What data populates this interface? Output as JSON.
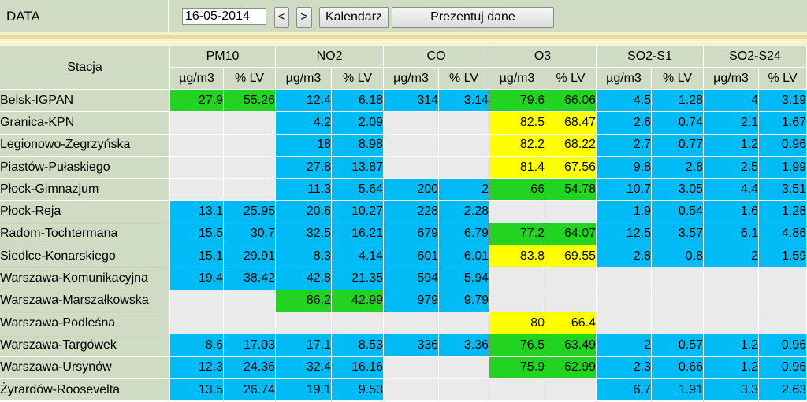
{
  "toolbar": {
    "date_label": "DATA",
    "date_value": "16-05-2014",
    "prev_label": "<",
    "next_label": ">",
    "calendar_label": "Kalendarz",
    "show_label": "Prezentuj dane"
  },
  "colors": {
    "green": "#22d322",
    "blue": "#00bbf6",
    "yellow": "#ffff00",
    "empty": "#eaeaea",
    "header": "#cfdcc3"
  },
  "table": {
    "station_header": "Stacja",
    "pollutants": [
      "PM10",
      "NO2",
      "CO",
      "O3",
      "SO2-S1",
      "SO2-S24"
    ],
    "unit_labels": [
      "µg/m3",
      "% LV"
    ],
    "rows": [
      {
        "station": "Belsk-IGPAN",
        "cells": [
          [
            "27.9",
            "55.26",
            "green"
          ],
          [
            "12.4",
            "6.18",
            "blue"
          ],
          [
            "314",
            "3.14",
            "blue"
          ],
          [
            "79.6",
            "66.06",
            "green"
          ],
          [
            "4.5",
            "1.28",
            "blue"
          ],
          [
            "4",
            "3.19",
            "blue"
          ]
        ]
      },
      {
        "station": "Granica-KPN",
        "cells": [
          [
            "",
            "",
            "gray"
          ],
          [
            "4.2",
            "2.09",
            "blue"
          ],
          [
            "",
            "",
            "gray"
          ],
          [
            "82.5",
            "68.47",
            "yellow"
          ],
          [
            "2.6",
            "0.74",
            "blue"
          ],
          [
            "2.1",
            "1.67",
            "blue"
          ]
        ]
      },
      {
        "station": "Legionowo-Zegrzyńska",
        "cells": [
          [
            "",
            "",
            "gray"
          ],
          [
            "18",
            "8.98",
            "blue"
          ],
          [
            "",
            "",
            "gray"
          ],
          [
            "82.2",
            "68.22",
            "yellow"
          ],
          [
            "2.7",
            "0.77",
            "blue"
          ],
          [
            "1.2",
            "0.96",
            "blue"
          ]
        ]
      },
      {
        "station": "Piastów-Pułaskiego",
        "cells": [
          [
            "",
            "",
            "gray"
          ],
          [
            "27.8",
            "13.87",
            "blue"
          ],
          [
            "",
            "",
            "gray"
          ],
          [
            "81.4",
            "67.56",
            "yellow"
          ],
          [
            "9.8",
            "2.8",
            "blue"
          ],
          [
            "2.5",
            "1.99",
            "blue"
          ]
        ]
      },
      {
        "station": "Płock-Gimnazjum",
        "cells": [
          [
            "",
            "",
            "gray"
          ],
          [
            "11.3",
            "5.64",
            "blue"
          ],
          [
            "200",
            "2",
            "blue"
          ],
          [
            "66",
            "54.78",
            "green"
          ],
          [
            "10.7",
            "3.05",
            "blue"
          ],
          [
            "4.4",
            "3.51",
            "blue"
          ]
        ]
      },
      {
        "station": "Płock-Reja",
        "cells": [
          [
            "13.1",
            "25.95",
            "blue"
          ],
          [
            "20.6",
            "10.27",
            "blue"
          ],
          [
            "228",
            "2.28",
            "blue"
          ],
          [
            "",
            "",
            "gray"
          ],
          [
            "1.9",
            "0.54",
            "blue"
          ],
          [
            "1.6",
            "1.28",
            "blue"
          ]
        ]
      },
      {
        "station": "Radom-Tochtermana",
        "cells": [
          [
            "15.5",
            "30.7",
            "blue"
          ],
          [
            "32.5",
            "16.21",
            "blue"
          ],
          [
            "679",
            "6.79",
            "blue"
          ],
          [
            "77.2",
            "64.07",
            "green"
          ],
          [
            "12.5",
            "3.57",
            "blue"
          ],
          [
            "6.1",
            "4.86",
            "blue"
          ]
        ]
      },
      {
        "station": "Siedlce-Konarskiego",
        "cells": [
          [
            "15.1",
            "29.91",
            "blue"
          ],
          [
            "8.3",
            "4.14",
            "blue"
          ],
          [
            "601",
            "6.01",
            "blue"
          ],
          [
            "83.8",
            "69.55",
            "yellow"
          ],
          [
            "2.8",
            "0.8",
            "blue"
          ],
          [
            "2",
            "1.59",
            "blue"
          ]
        ]
      },
      {
        "station": "Warszawa-Komunikacyjna",
        "cells": [
          [
            "19.4",
            "38.42",
            "blue"
          ],
          [
            "42.8",
            "21.35",
            "blue"
          ],
          [
            "594",
            "5.94",
            "blue"
          ],
          [
            "",
            "",
            "gray"
          ],
          [
            "",
            "",
            "gray"
          ],
          [
            "",
            "",
            "gray"
          ]
        ]
      },
      {
        "station": "Warszawa-Marszałkowska",
        "cells": [
          [
            "",
            "",
            "gray"
          ],
          [
            "86.2",
            "42.99",
            "green"
          ],
          [
            "979",
            "9.79",
            "blue"
          ],
          [
            "",
            "",
            "gray"
          ],
          [
            "",
            "",
            "gray"
          ],
          [
            "",
            "",
            "gray"
          ]
        ]
      },
      {
        "station": "Warszawa-Podleśna",
        "cells": [
          [
            "",
            "",
            "gray"
          ],
          [
            "",
            "",
            "gray"
          ],
          [
            "",
            "",
            "gray"
          ],
          [
            "80",
            "66.4",
            "yellow"
          ],
          [
            "",
            "",
            "gray"
          ],
          [
            "",
            "",
            "gray"
          ]
        ]
      },
      {
        "station": "Warszawa-Targówek",
        "cells": [
          [
            "8.6",
            "17.03",
            "blue"
          ],
          [
            "17.1",
            "8.53",
            "blue"
          ],
          [
            "336",
            "3.36",
            "blue"
          ],
          [
            "76.5",
            "63.49",
            "green"
          ],
          [
            "2",
            "0.57",
            "blue"
          ],
          [
            "1.2",
            "0.96",
            "blue"
          ]
        ]
      },
      {
        "station": "Warszawa-Ursynów",
        "cells": [
          [
            "12.3",
            "24.36",
            "blue"
          ],
          [
            "32.4",
            "16.16",
            "blue"
          ],
          [
            "",
            "",
            "gray"
          ],
          [
            "75.9",
            "62.99",
            "green"
          ],
          [
            "2.3",
            "0.66",
            "blue"
          ],
          [
            "1.2",
            "0.96",
            "blue"
          ]
        ]
      },
      {
        "station": "Żyrardów-Roosevelta",
        "cells": [
          [
            "13.5",
            "26.74",
            "blue"
          ],
          [
            "19.1",
            "9.53",
            "blue"
          ],
          [
            "",
            "",
            "gray"
          ],
          [
            "",
            "",
            "gray"
          ],
          [
            "6.7",
            "1.91",
            "blue"
          ],
          [
            "3.3",
            "2.63",
            "blue"
          ]
        ]
      }
    ]
  }
}
